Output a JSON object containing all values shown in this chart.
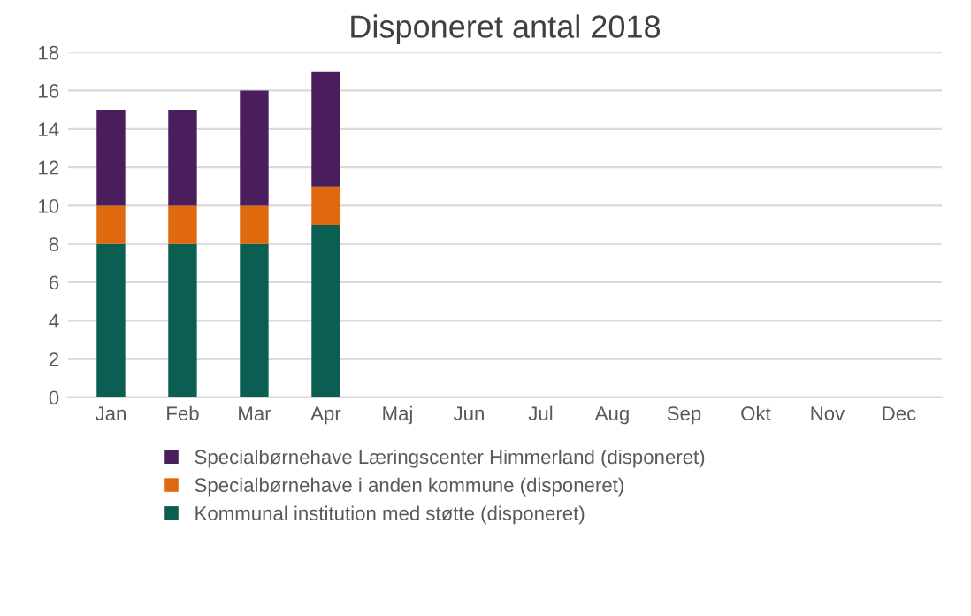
{
  "chart_data": {
    "type": "bar",
    "title": "Disponeret antal 2018",
    "stacked": true,
    "categories": [
      "Jan",
      "Feb",
      "Mar",
      "Apr",
      "Maj",
      "Jun",
      "Jul",
      "Aug",
      "Sep",
      "Okt",
      "Nov",
      "Dec"
    ],
    "series": [
      {
        "name": "Kommunal institution med støtte (disponeret)",
        "color": "#0b5e52",
        "values": [
          8,
          8,
          8,
          9,
          null,
          null,
          null,
          null,
          null,
          null,
          null,
          null
        ]
      },
      {
        "name": "Specialbørnehave i anden kommune (disponeret)",
        "color": "#e0690f",
        "values": [
          2,
          2,
          2,
          2,
          null,
          null,
          null,
          null,
          null,
          null,
          null,
          null
        ]
      },
      {
        "name": "Specialbørnehave Læringscenter Himmerland (disponeret)",
        "color": "#4a1d5c",
        "values": [
          5,
          5,
          6,
          6,
          null,
          null,
          null,
          null,
          null,
          null,
          null,
          null
        ]
      }
    ],
    "ylim": [
      0,
      18
    ],
    "yticks": [
      0,
      2,
      4,
      6,
      8,
      10,
      12,
      14,
      16,
      18
    ],
    "grid": "y",
    "legend": "bottom"
  }
}
